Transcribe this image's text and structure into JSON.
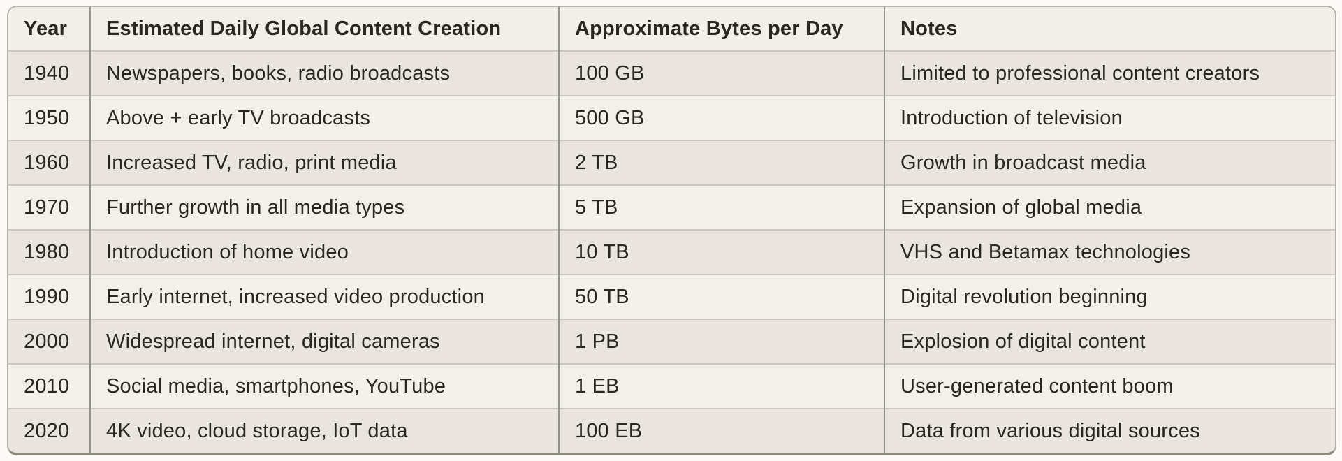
{
  "table": {
    "columns": [
      "Year",
      "Estimated Daily Global Content Creation",
      "Approximate Bytes per Day",
      "Notes"
    ],
    "rows": [
      [
        "1940",
        "Newspapers, books, radio broadcasts",
        "100 GB",
        "Limited to professional content creators"
      ],
      [
        "1950",
        "Above + early TV broadcasts",
        "500 GB",
        "Introduction of television"
      ],
      [
        "1960",
        "Increased TV, radio, print media",
        "2 TB",
        "Growth in broadcast media"
      ],
      [
        "1970",
        "Further growth in all media types",
        "5 TB",
        "Expansion of global media"
      ],
      [
        "1980",
        "Introduction of home video",
        "10 TB",
        "VHS and Betamax technologies"
      ],
      [
        "1990",
        "Early internet, increased video production",
        "50 TB",
        "Digital revolution beginning"
      ],
      [
        "2000",
        "Widespread internet, digital cameras",
        "1 PB",
        "Explosion of digital content"
      ],
      [
        "2010",
        "Social media, smartphones, YouTube",
        "1 EB",
        "User-generated content boom"
      ],
      [
        "2020",
        "4K video, cloud storage, IoT data",
        "100 EB",
        "Data from various digital sources"
      ]
    ]
  },
  "colors": {
    "page_background": "#fbfaf6",
    "header_background": "#f2efe8",
    "row_odd_background": "#eae6df",
    "row_even_background": "#f2f0e9",
    "vertical_border": "#94908a",
    "horizontal_border": "#ccc8c0",
    "outer_border": "#b5b1a9",
    "outer_border_bottom": "#8e8a82",
    "text": "#29271f"
  }
}
